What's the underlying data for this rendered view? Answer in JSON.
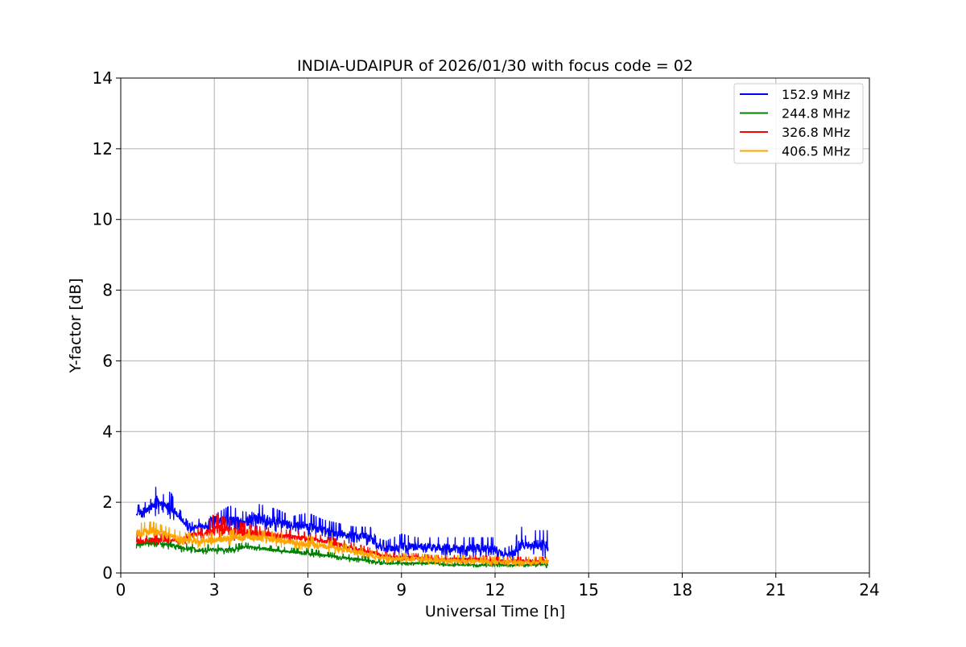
{
  "chart_data": {
    "type": "line",
    "title": "INDIA-UDAIPUR of 2026/01/30 with focus code = 02",
    "xlabel": "Universal Time [h]",
    "ylabel": "Y-factor [dB]",
    "xlim": [
      0,
      24
    ],
    "ylim": [
      0,
      14
    ],
    "xticks": [
      0,
      3,
      6,
      9,
      12,
      15,
      18,
      21,
      24
    ],
    "yticks": [
      0,
      2,
      4,
      6,
      8,
      10,
      12,
      14
    ],
    "grid": true,
    "legend_position": "top-right",
    "series": [
      {
        "name": "152.9 MHz",
        "color": "#0000ff",
        "x": [
          0.5,
          0.8,
          1.0,
          1.15,
          1.3,
          1.6,
          1.8,
          2.2,
          2.7,
          3.0,
          3.1,
          3.5,
          4.0,
          4.2,
          4.6,
          5.0,
          5.5,
          6.0,
          6.5,
          7.0,
          7.5,
          8.0,
          8.2,
          8.5,
          9.0,
          9.5,
          10.0,
          10.5,
          11.0,
          11.5,
          12.0,
          12.3,
          12.6,
          12.8,
          13.0,
          13.3,
          13.7
        ],
        "base": [
          1.6,
          1.7,
          1.8,
          1.8,
          1.8,
          1.7,
          1.6,
          1.2,
          1.25,
          1.3,
          1.4,
          1.3,
          1.3,
          1.4,
          1.35,
          1.3,
          1.25,
          1.2,
          1.1,
          1.0,
          0.95,
          0.9,
          0.7,
          0.6,
          0.6,
          0.65,
          0.65,
          0.6,
          0.55,
          0.6,
          0.55,
          0.45,
          0.45,
          0.6,
          0.7,
          0.65,
          0.6
        ],
        "peak": [
          1.9,
          2.0,
          2.1,
          2.5,
          2.2,
          2.3,
          1.9,
          1.4,
          1.6,
          2.1,
          1.7,
          1.9,
          1.7,
          2.0,
          1.9,
          1.8,
          1.6,
          1.7,
          1.5,
          1.4,
          1.3,
          1.3,
          1.0,
          0.9,
          1.1,
          1.0,
          1.0,
          1.0,
          1.0,
          1.0,
          1.0,
          0.7,
          0.8,
          1.4,
          1.0,
          1.2,
          1.2
        ]
      },
      {
        "name": "244.8 MHz",
        "color": "#008000",
        "x": [
          0.5,
          1.0,
          1.5,
          2.0,
          2.5,
          3.0,
          3.5,
          4.0,
          4.5,
          5.0,
          5.5,
          6.0,
          6.5,
          7.0,
          7.5,
          8.0,
          8.5,
          9.0,
          9.5,
          10.0,
          10.5,
          11.0,
          11.5,
          12.0,
          12.5,
          13.0,
          13.7
        ],
        "base": [
          0.75,
          0.8,
          0.75,
          0.65,
          0.6,
          0.6,
          0.6,
          0.7,
          0.65,
          0.6,
          0.55,
          0.5,
          0.45,
          0.4,
          0.35,
          0.3,
          0.25,
          0.25,
          0.25,
          0.25,
          0.2,
          0.2,
          0.2,
          0.2,
          0.2,
          0.2,
          0.2
        ],
        "peak": [
          0.95,
          1.0,
          0.95,
          0.85,
          0.8,
          0.8,
          0.8,
          0.85,
          0.8,
          0.75,
          0.7,
          0.7,
          0.6,
          0.55,
          0.5,
          0.45,
          0.35,
          0.35,
          0.35,
          0.35,
          0.3,
          0.3,
          0.3,
          0.3,
          0.3,
          0.3,
          0.35
        ]
      },
      {
        "name": "326.8 MHz",
        "color": "#ff0000",
        "x": [
          0.5,
          1.0,
          1.5,
          2.0,
          2.3,
          2.7,
          3.0,
          3.5,
          4.0,
          4.5,
          5.0,
          5.5,
          6.0,
          6.5,
          7.0,
          7.5,
          8.0,
          8.5,
          9.0,
          9.5,
          10.0,
          10.5,
          11.0,
          11.5,
          12.0,
          12.5,
          13.0,
          13.7
        ],
        "base": [
          0.8,
          0.85,
          0.9,
          0.85,
          1.0,
          1.05,
          1.05,
          1.05,
          1.05,
          1.05,
          1.0,
          0.95,
          0.9,
          0.85,
          0.75,
          0.65,
          0.55,
          0.45,
          0.4,
          0.4,
          0.35,
          0.35,
          0.35,
          0.35,
          0.3,
          0.3,
          0.3,
          0.3
        ],
        "peak": [
          1.1,
          1.1,
          1.1,
          1.0,
          1.25,
          1.3,
          1.7,
          1.5,
          1.4,
          1.3,
          1.25,
          1.2,
          1.15,
          1.05,
          0.95,
          0.85,
          0.7,
          0.6,
          0.55,
          0.55,
          0.5,
          0.5,
          0.5,
          0.5,
          0.45,
          0.45,
          0.45,
          0.45
        ]
      },
      {
        "name": "406.5 MHz",
        "color": "#ffa500",
        "x": [
          0.5,
          1.0,
          1.5,
          2.0,
          2.5,
          3.0,
          3.5,
          4.0,
          4.5,
          5.0,
          5.5,
          6.0,
          6.5,
          7.0,
          7.5,
          8.0,
          8.5,
          9.0,
          9.5,
          10.0,
          10.5,
          11.0,
          11.5,
          12.0,
          12.5,
          13.0,
          13.7
        ],
        "base": [
          1.0,
          1.1,
          1.0,
          0.85,
          0.8,
          0.85,
          0.9,
          0.95,
          0.9,
          0.85,
          0.8,
          0.75,
          0.7,
          0.6,
          0.55,
          0.45,
          0.35,
          0.35,
          0.35,
          0.3,
          0.3,
          0.3,
          0.3,
          0.25,
          0.25,
          0.25,
          0.25
        ],
        "peak": [
          1.4,
          1.45,
          1.3,
          1.15,
          1.1,
          1.15,
          1.2,
          1.25,
          1.2,
          1.15,
          1.1,
          1.05,
          0.95,
          0.85,
          0.75,
          0.65,
          0.55,
          0.55,
          0.55,
          0.5,
          0.5,
          0.5,
          0.45,
          0.45,
          0.45,
          0.45,
          0.45
        ]
      }
    ]
  }
}
